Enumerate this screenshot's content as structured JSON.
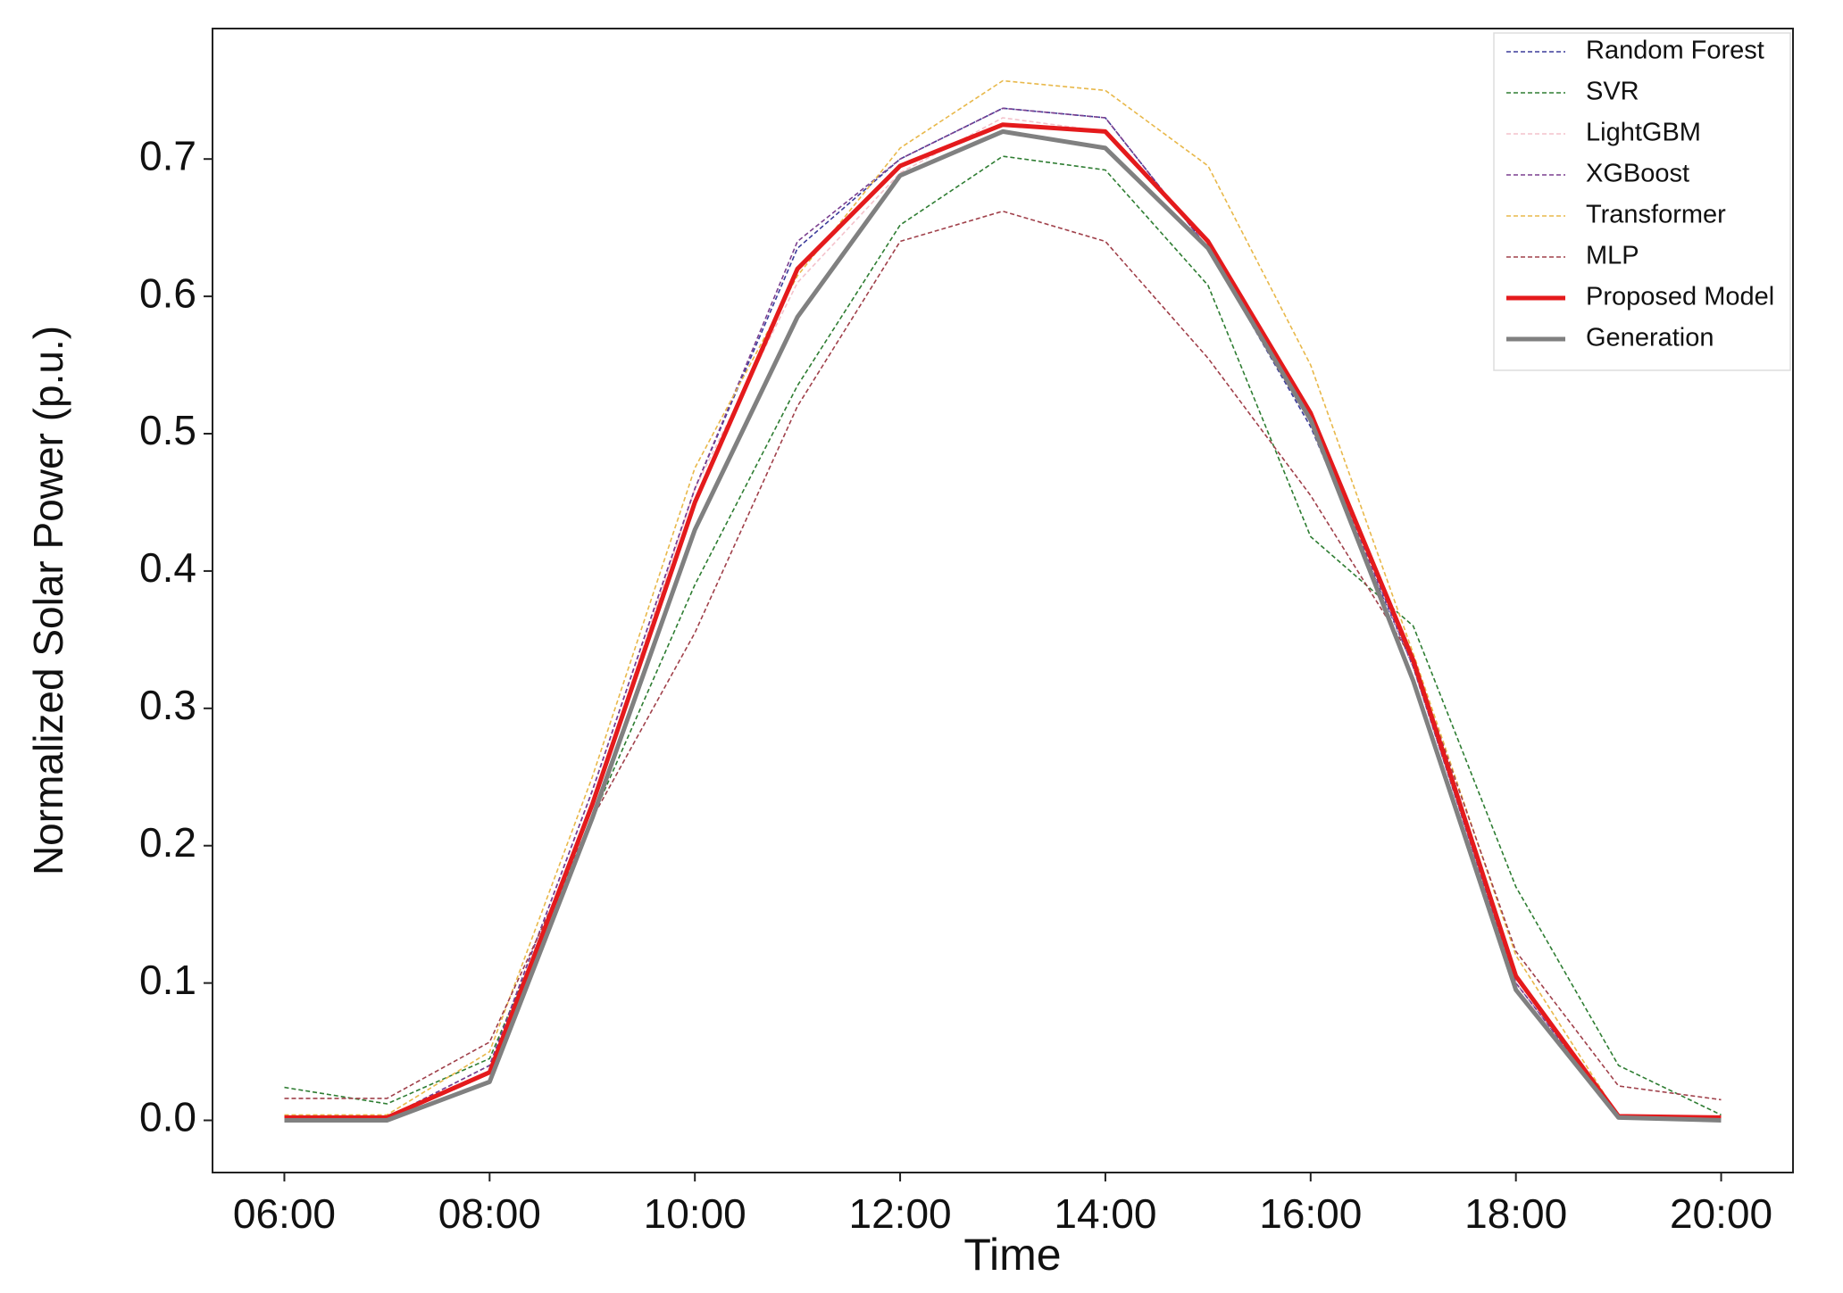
{
  "chart_data": {
    "type": "line",
    "x_label": "Time",
    "y_label": "Normalized Solar Power (p.u.)",
    "categories": [
      "06:00",
      null,
      "08:00",
      null,
      "10:00",
      null,
      "12:00",
      null,
      "14:00",
      null,
      "16:00",
      null,
      "18:00",
      null,
      "20:00"
    ],
    "ylim": [
      -0.038,
      0.795
    ],
    "yticks": [
      {
        "value": 0,
        "label": "0.0"
      },
      0.1,
      0.2,
      0.3,
      0.4,
      0.5,
      0.6,
      0.7
    ],
    "grid": false,
    "legend": "upper right",
    "series": [
      {
        "name": "Random Forest",
        "color": "#3b3b9a",
        "linestyle": "dashed",
        "values": [
          0.002,
          0.002,
          0.04,
          0.24,
          0.46,
          0.635,
          0.7,
          0.737,
          0.73,
          0.635,
          0.505,
          0.33,
          0.1,
          0.003,
          0.002
        ]
      },
      {
        "name": "SVR",
        "color": "#2e7d32",
        "linestyle": "dashed",
        "values": [
          0.024,
          0.012,
          0.045,
          0.22,
          0.39,
          0.535,
          0.652,
          0.702,
          0.692,
          0.608,
          0.425,
          0.36,
          0.17,
          0.04,
          0.004
        ]
      },
      {
        "name": "LightGBM",
        "color": "#f4c2cb",
        "linestyle": "dashed",
        "values": [
          0.003,
          0.003,
          0.035,
          0.23,
          0.46,
          0.61,
          0.69,
          0.73,
          0.72,
          0.64,
          0.51,
          0.33,
          0.1,
          0.003,
          0.003
        ]
      },
      {
        "name": "XGBoost",
        "color": "#7b3f8f",
        "linestyle": "dashed",
        "values": [
          0.002,
          0.002,
          0.04,
          0.24,
          0.46,
          0.64,
          0.7,
          0.737,
          0.73,
          0.635,
          0.51,
          0.33,
          0.1,
          0.003,
          0.002
        ]
      },
      {
        "name": "Transformer",
        "color": "#e8b84a",
        "linestyle": "dashed",
        "values": [
          0.004,
          0.004,
          0.05,
          0.25,
          0.475,
          0.615,
          0.708,
          0.757,
          0.75,
          0.695,
          0.55,
          0.34,
          0.12,
          0.003,
          0.002
        ]
      },
      {
        "name": "MLP",
        "color": "#a0404a",
        "linestyle": "dashed",
        "values": [
          0.016,
          0.016,
          0.057,
          0.22,
          0.355,
          0.52,
          0.64,
          0.662,
          0.64,
          0.555,
          0.455,
          0.335,
          0.123,
          0.025,
          0.015
        ]
      },
      {
        "name": "Proposed Model",
        "color": "#e41a1c",
        "linestyle": "solid",
        "values": [
          0.002,
          0.002,
          0.035,
          0.23,
          0.45,
          0.62,
          0.695,
          0.725,
          0.72,
          0.64,
          0.515,
          0.335,
          0.105,
          0.003,
          0.002
        ]
      },
      {
        "name": "Generation",
        "color": "#808080",
        "linestyle": "solid",
        "values": [
          0,
          0,
          0.028,
          0.22,
          0.43,
          0.585,
          0.688,
          0.72,
          0.708,
          0.635,
          0.51,
          0.32,
          0.095,
          0.002,
          0
        ]
      }
    ]
  }
}
